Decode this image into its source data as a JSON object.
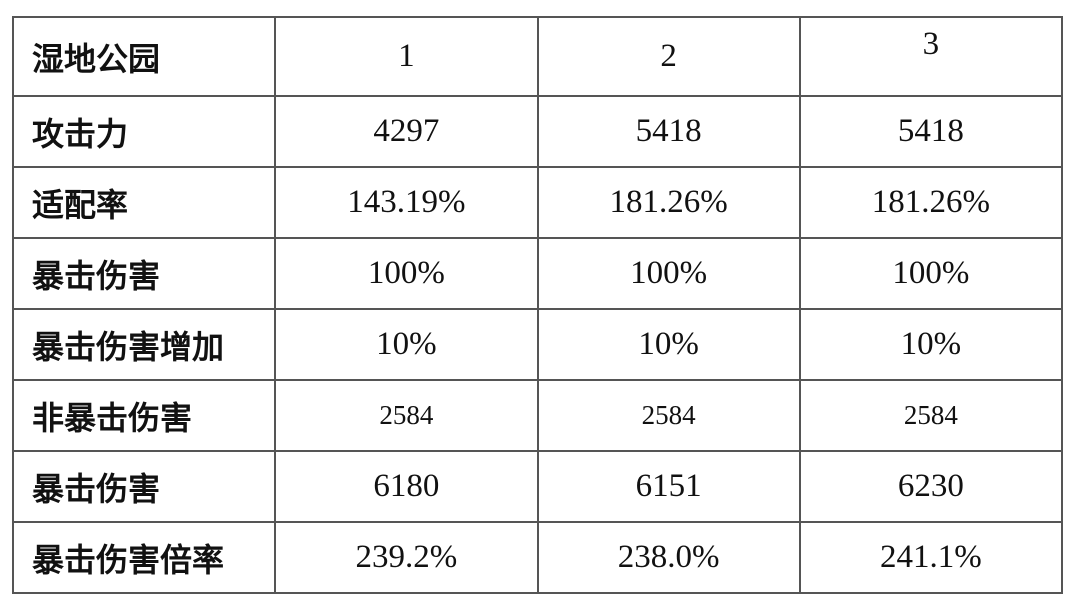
{
  "table": {
    "header": {
      "label": "湿地公园",
      "cols": [
        "1",
        "2",
        "3"
      ]
    },
    "rows": [
      {
        "label": "攻击力",
        "values": [
          "4297",
          "5418",
          "5418"
        ]
      },
      {
        "label": "适配率",
        "values": [
          "143.19%",
          "181.26%",
          "181.26%"
        ]
      },
      {
        "label": "暴击伤害",
        "values": [
          "100%",
          "100%",
          "100%"
        ]
      },
      {
        "label": "暴击伤害增加",
        "values": [
          "10%",
          "10%",
          "10%"
        ]
      },
      {
        "label": "非暴击伤害",
        "values": [
          "2584",
          "2584",
          "2584"
        ]
      },
      {
        "label": "暴击伤害",
        "values": [
          "6180",
          "6151",
          "6230"
        ]
      },
      {
        "label": "暴击伤害倍率",
        "values": [
          "239.2%",
          "238.0%",
          "241.1%"
        ]
      }
    ]
  }
}
